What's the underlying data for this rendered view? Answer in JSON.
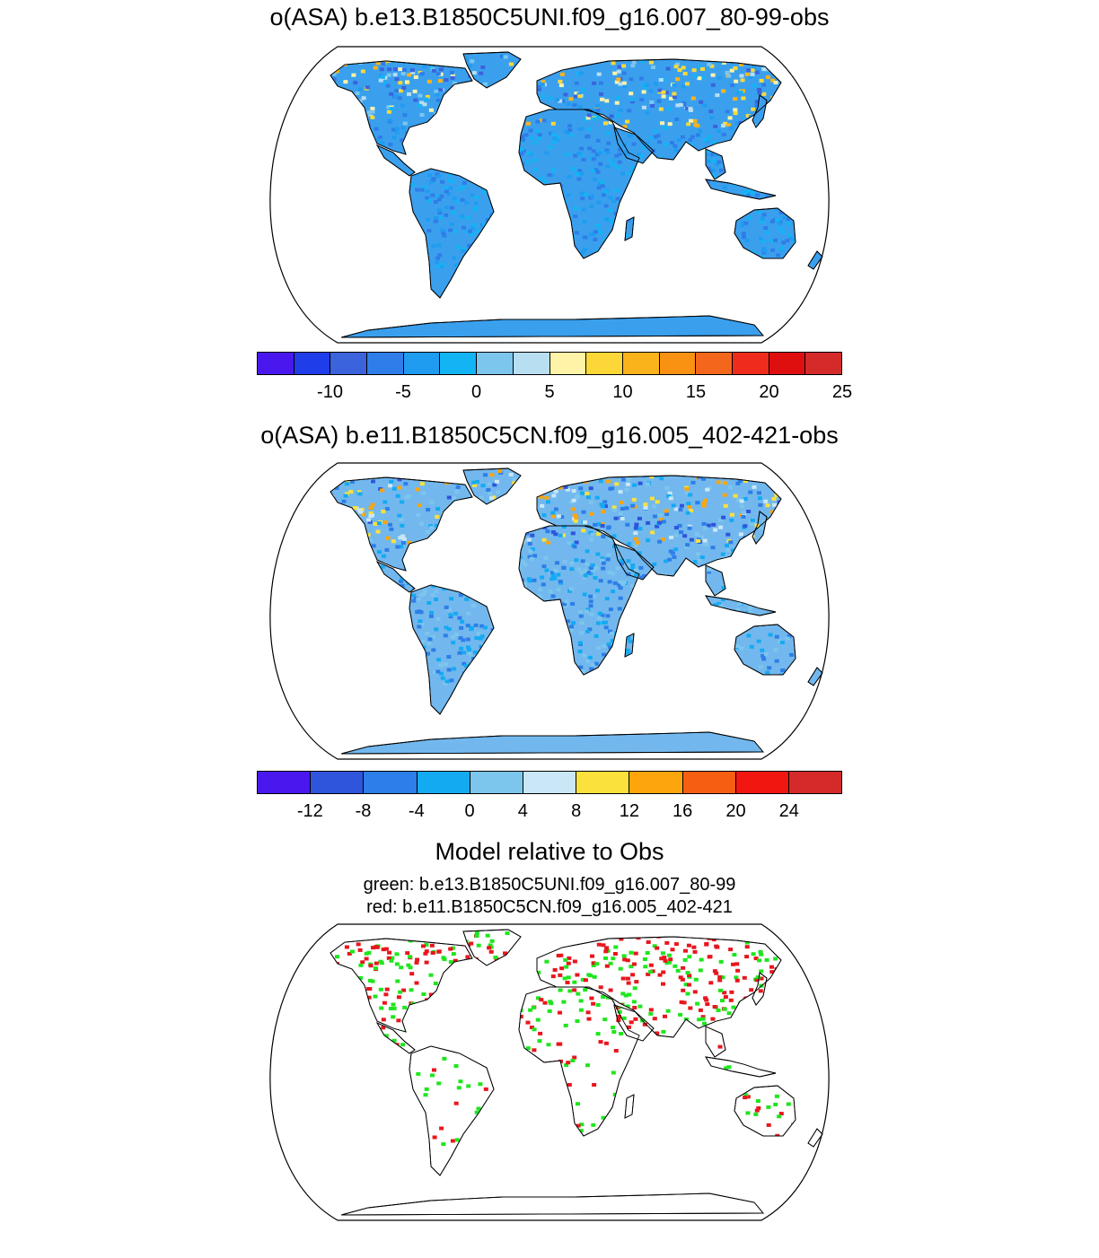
{
  "panel1": {
    "title": "o(ASA) b.e13.B1850C5UNI.f09_g16.007_80-99-obs",
    "colors": [
      "#4a18ee",
      "#1f3de8",
      "#3b63dc",
      "#2f7de8",
      "#1f9cf0",
      "#12b4f4",
      "#7cc6ee",
      "#b8def2",
      "#fff3a8",
      "#fbd838",
      "#fbb31c",
      "#f99212",
      "#f4661c",
      "#ef2b1b",
      "#df0f10",
      "#d42a2a"
    ],
    "tick_labels": [
      "-10",
      "-5",
      "0",
      "5",
      "10",
      "15",
      "20",
      "25"
    ],
    "tick_after_box": [
      2,
      4,
      6,
      8,
      10,
      12,
      14,
      16
    ]
  },
  "panel2": {
    "title": "o(ASA) b.e11.B1850C5CN.f09_g16.005_402-421-obs",
    "colors": [
      "#4a18ee",
      "#2f55dc",
      "#2d7ee8",
      "#14aaf2",
      "#7cc6ee",
      "#c9e7f6",
      "#fbe13c",
      "#fca50c",
      "#f65e12",
      "#f21610",
      "#d42a2a"
    ],
    "tick_labels": [
      "-12",
      "-8",
      "-4",
      "0",
      "4",
      "8",
      "12",
      "16",
      "20",
      "24"
    ],
    "tick_after_box": [
      1,
      2,
      3,
      4,
      5,
      6,
      7,
      8,
      9,
      10
    ]
  },
  "panel3": {
    "title": "Model relative to Obs",
    "line1": "green: b.e13.B1850C5UNI.f09_g16.007_80-99",
    "line2": "red: b.e11.B1850C5CN.f09_g16.005_402-421",
    "green": "#1ee61e",
    "red": "#e8161e"
  }
}
